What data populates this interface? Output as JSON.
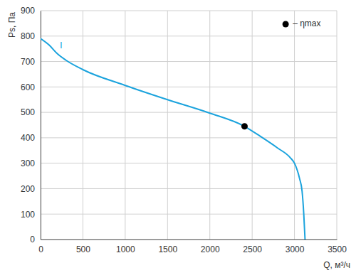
{
  "chart_data": {
    "type": "line",
    "x_label": "Q, м³/ч",
    "y_label": "Ps, Па",
    "xlim": [
      0,
      3500
    ],
    "xticks": [
      0,
      500,
      1000,
      1500,
      2000,
      2500,
      3000,
      3500
    ],
    "ylim": [
      0,
      900
    ],
    "yticks": [
      0,
      100,
      200,
      300,
      400,
      500,
      600,
      700,
      800,
      900
    ],
    "grid": true,
    "legend": "upper right",
    "series": [
      {
        "name": "I",
        "type": "line",
        "color": "#1ba3dd",
        "x": [
          0,
          100,
          200,
          300,
          500,
          1000,
          1500,
          2000,
          2410,
          2600,
          2800,
          2950,
          3000,
          3060,
          3090,
          3110,
          3125
        ],
        "values": [
          790,
          765,
          730,
          705,
          668,
          606,
          550,
          497,
          445,
          405,
          360,
          322,
          300,
          240,
          190,
          100,
          0
        ]
      },
      {
        "name": "– ηmax",
        "type": "scatter",
        "marker": "circle",
        "color": "#000000",
        "x": [
          2410
        ],
        "values": [
          445
        ]
      }
    ]
  }
}
